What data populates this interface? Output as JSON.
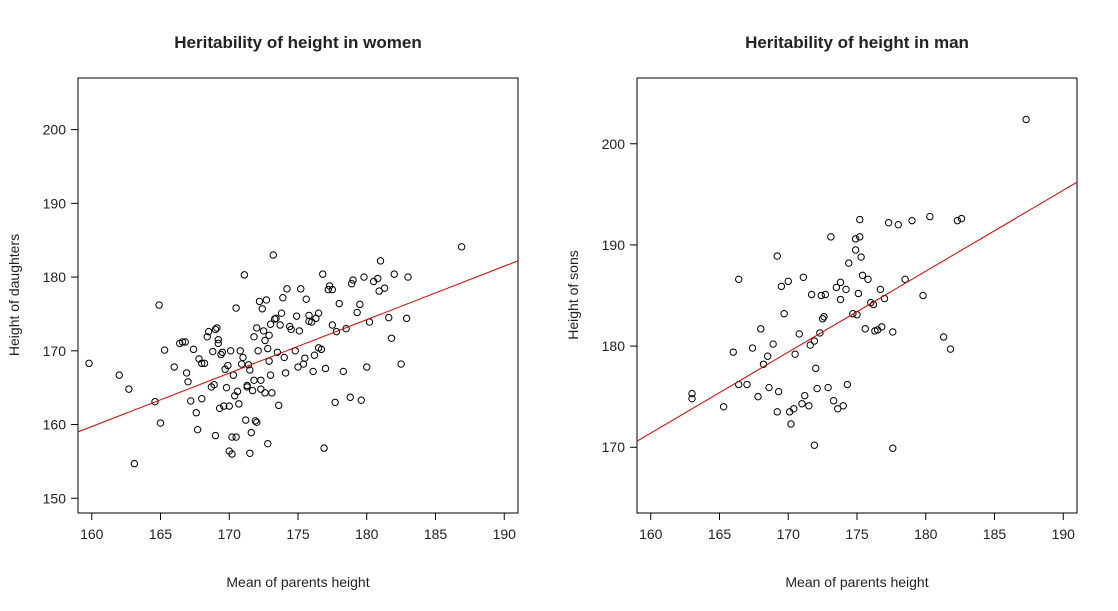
{
  "chart_data": [
    {
      "type": "scatter",
      "title": "Heritability of height in women",
      "xlabel": "Mean of parents height",
      "ylabel": "Height of daughters",
      "xlim": [
        159,
        191
      ],
      "ylim": [
        148,
        207
      ],
      "xticks": [
        160,
        165,
        170,
        175,
        180,
        185,
        190
      ],
      "yticks": [
        150,
        160,
        170,
        180,
        190,
        200
      ],
      "point_color": "#000000",
      "regression_color": "#d40000",
      "regression": {
        "x": [
          159,
          191
        ],
        "y": [
          159.0,
          182.2
        ]
      },
      "series": [
        {
          "x": [
            159.8,
            162.0,
            162.7,
            163.1,
            164.6,
            164.9,
            165.3,
            166.0,
            166.4,
            166.6,
            166.9,
            167.2,
            167.4,
            167.6,
            167.7,
            167.8,
            168.0,
            168.0,
            168.4,
            168.7,
            168.8,
            168.9,
            169.0,
            169.1,
            169.2,
            169.3,
            169.5,
            169.6,
            169.7,
            169.8,
            169.9,
            170.0,
            170.0,
            170.2,
            170.3,
            170.4,
            170.5,
            170.6,
            170.8,
            170.9,
            171.0,
            171.2,
            171.3,
            171.4,
            171.5,
            171.6,
            171.7,
            171.8,
            171.9,
            172.0,
            172.1,
            172.2,
            172.3,
            172.4,
            172.5,
            172.6,
            172.7,
            172.8,
            172.9,
            173.0,
            173.1,
            173.3,
            173.5,
            173.6,
            173.7,
            173.9,
            174.0,
            174.2,
            174.4,
            174.5,
            174.8,
            175.0,
            175.2,
            175.4,
            175.5,
            175.6,
            175.8,
            176.0,
            176.1,
            176.3,
            176.5,
            176.7,
            176.8,
            177.0,
            177.2,
            177.3,
            177.5,
            177.8,
            178.0,
            178.3,
            178.5,
            178.8,
            179.0,
            179.3,
            179.5,
            179.8,
            180.0,
            180.2,
            180.5,
            180.8,
            181.0,
            181.3,
            181.6,
            182.0,
            182.5,
            182.9,
            183.0,
            186.9,
            171.5,
            172.0,
            170.5,
            169.2,
            168.5,
            173.8,
            176.2,
            179.6,
            174.9,
            173.2,
            171.1,
            177.5,
            170.1,
            172.8,
            178.9,
            167.0,
            176.9,
            175.1,
            180.9,
            171.8,
            169.4,
            165.0,
            166.8,
            174.1,
            172.3,
            170.7,
            168.2,
            173.4,
            177.7,
            181.8,
            171.3,
            170.2,
            175.8,
            172.6,
            169.0,
            173.0,
            172.9,
            176.5
          ],
          "y": [
            168.3,
            166.7,
            164.8,
            154.7,
            163.1,
            176.2,
            170.1,
            167.8,
            171.0,
            171.2,
            167.0,
            163.2,
            170.2,
            161.6,
            159.3,
            168.9,
            168.3,
            163.5,
            171.9,
            165.1,
            169.9,
            165.4,
            158.5,
            173.1,
            171.0,
            162.2,
            169.8,
            162.5,
            167.5,
            165.0,
            168.0,
            162.5,
            156.4,
            158.3,
            166.7,
            163.9,
            158.3,
            164.5,
            170.0,
            168.2,
            169.1,
            160.6,
            165.3,
            168.1,
            167.4,
            158.9,
            164.6,
            166.0,
            160.5,
            173.1,
            170.0,
            176.7,
            164.8,
            175.7,
            172.7,
            171.4,
            176.9,
            170.3,
            172.1,
            166.7,
            164.3,
            174.3,
            169.8,
            162.6,
            173.5,
            177.2,
            169.1,
            178.4,
            173.3,
            172.9,
            170.0,
            167.8,
            178.4,
            168.2,
            169.0,
            177.0,
            174.0,
            173.9,
            167.2,
            174.4,
            175.1,
            170.2,
            180.4,
            167.6,
            178.3,
            178.8,
            173.5,
            172.6,
            176.4,
            167.2,
            173.0,
            163.7,
            179.6,
            175.2,
            176.3,
            180.0,
            167.8,
            173.9,
            179.4,
            179.8,
            182.2,
            178.5,
            174.5,
            180.4,
            168.2,
            174.4,
            180.0,
            184.1,
            156.1,
            160.3,
            175.8,
            171.5,
            172.6,
            175.1,
            169.4,
            163.3,
            174.7,
            183.0,
            180.3,
            178.3,
            170.0,
            157.4,
            179.1,
            165.8,
            156.8,
            172.7,
            178.1,
            171.9,
            169.5,
            160.2,
            171.2,
            167.0,
            166.0,
            162.8,
            168.3,
            174.4,
            163.0,
            171.7,
            165.1,
            156.0,
            174.8,
            164.3,
            172.9,
            173.6,
            168.6,
            170.4
          ]
        }
      ]
    },
    {
      "type": "scatter",
      "title": "Heritability of height in man",
      "xlabel": "Mean of parents height",
      "ylabel": "Height of sons",
      "xlim": [
        159,
        191
      ],
      "ylim": [
        163.5,
        206.5
      ],
      "xticks": [
        160,
        165,
        170,
        175,
        180,
        185,
        190
      ],
      "yticks": [
        170,
        180,
        190,
        200
      ],
      "point_color": "#000000",
      "regression_color": "#d40000",
      "regression": {
        "x": [
          159,
          191
        ],
        "y": [
          170.6,
          196.2
        ]
      },
      "series": [
        {
          "x": [
            163.0,
            163.0,
            165.3,
            166.0,
            166.4,
            166.4,
            167.0,
            167.4,
            167.8,
            168.0,
            168.2,
            168.5,
            168.9,
            169.2,
            169.3,
            169.5,
            169.7,
            170.0,
            170.1,
            170.2,
            170.5,
            170.8,
            171.0,
            171.2,
            171.5,
            171.7,
            171.9,
            172.0,
            172.1,
            172.3,
            172.5,
            172.7,
            172.9,
            173.1,
            173.3,
            173.5,
            173.8,
            174.0,
            174.2,
            174.4,
            174.7,
            174.9,
            175.0,
            175.1,
            175.2,
            175.4,
            175.6,
            175.8,
            176.0,
            176.3,
            176.5,
            176.7,
            177.0,
            177.3,
            177.6,
            178.0,
            178.5,
            179.0,
            179.8,
            180.3,
            181.3,
            181.8,
            182.3,
            182.6,
            187.3,
            172.4,
            171.6,
            173.6,
            174.3,
            175.2,
            176.2,
            169.2,
            170.4,
            171.1,
            173.8,
            175.3,
            177.6,
            174.9,
            172.6,
            171.9,
            176.8,
            168.6
          ],
          "y": [
            175.3,
            174.8,
            174.0,
            179.4,
            176.2,
            186.6,
            176.2,
            179.8,
            175.0,
            181.7,
            178.2,
            179.0,
            180.2,
            173.5,
            175.5,
            185.9,
            183.2,
            186.4,
            173.5,
            172.3,
            179.2,
            181.2,
            174.3,
            175.1,
            174.1,
            185.1,
            180.5,
            177.8,
            175.8,
            181.3,
            182.7,
            185.1,
            175.9,
            190.8,
            174.6,
            185.8,
            186.3,
            174.1,
            185.6,
            188.2,
            183.2,
            190.6,
            183.1,
            185.2,
            192.5,
            187.0,
            181.7,
            186.6,
            184.3,
            181.5,
            181.6,
            185.6,
            184.7,
            192.2,
            169.9,
            192.0,
            186.6,
            192.4,
            185.0,
            192.8,
            180.9,
            179.7,
            192.4,
            192.6,
            202.4,
            185.0,
            180.1,
            173.8,
            176.2,
            190.8,
            184.1,
            188.9,
            173.8,
            186.8,
            184.6,
            188.8,
            181.4,
            189.5,
            182.9,
            170.2,
            181.9,
            175.9
          ]
        }
      ]
    }
  ]
}
